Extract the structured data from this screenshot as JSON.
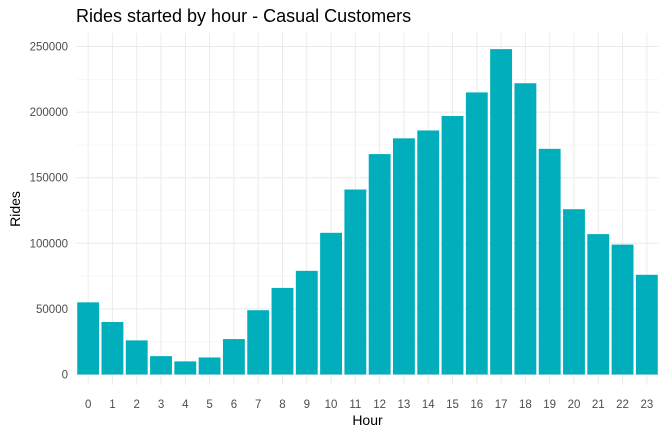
{
  "chart_data": {
    "type": "bar",
    "title": "Rides started by hour - Casual Customers",
    "xlabel": "Hour",
    "ylabel": "Rides",
    "categories": [
      "0",
      "1",
      "2",
      "3",
      "4",
      "5",
      "6",
      "7",
      "8",
      "9",
      "10",
      "11",
      "12",
      "13",
      "14",
      "15",
      "16",
      "17",
      "18",
      "19",
      "20",
      "21",
      "22",
      "23"
    ],
    "values": [
      55000,
      40000,
      26000,
      14000,
      10000,
      13000,
      27000,
      49000,
      66000,
      79000,
      108000,
      141000,
      168000,
      180000,
      186000,
      197000,
      215000,
      248000,
      222000,
      172000,
      126000,
      107000,
      99000,
      76000
    ],
    "ylim": [
      0,
      260000
    ],
    "yticks": [
      0,
      50000,
      100000,
      150000,
      200000,
      250000
    ],
    "ytick_labels": [
      "0",
      "50000",
      "100000",
      "150000",
      "200000",
      "250000"
    ],
    "bar_color": "#00AFBB",
    "grid": true,
    "legend": "none"
  }
}
